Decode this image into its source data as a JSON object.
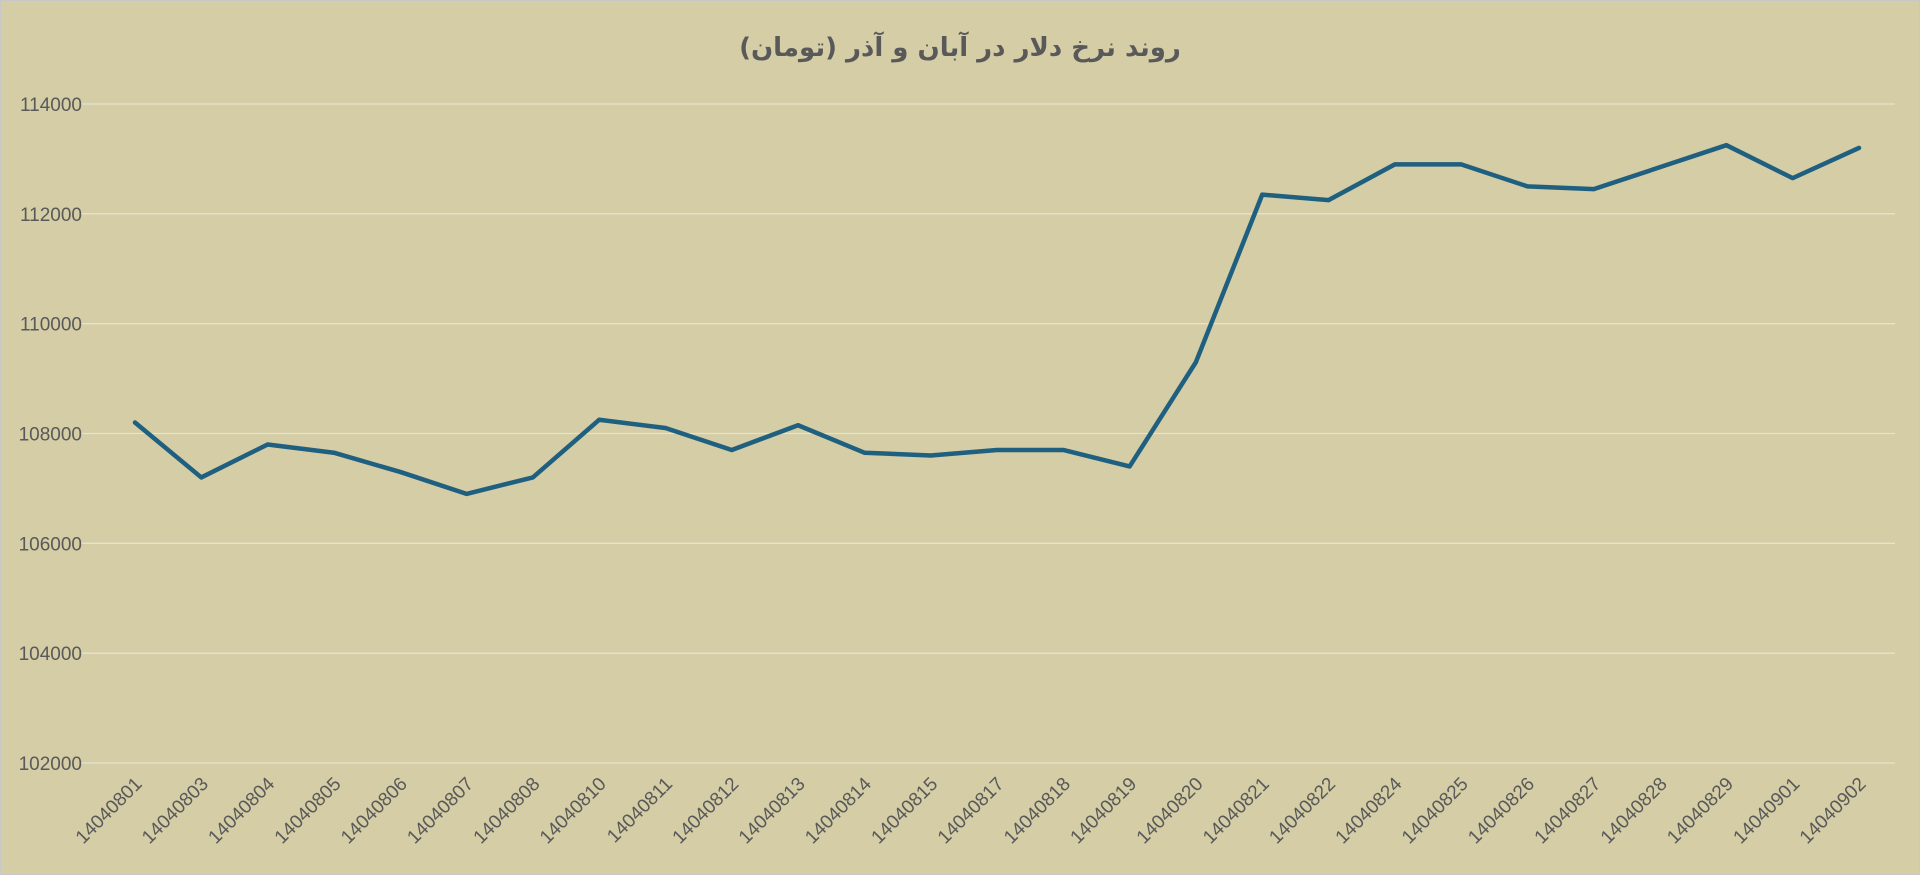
{
  "chart_data": {
    "type": "line",
    "title": "روند نرخ دلار در آبان و آذر (تومان)",
    "xlabel": "",
    "ylabel": "",
    "ylim": [
      102000,
      114000
    ],
    "yticks": [
      102000,
      104000,
      106000,
      108000,
      110000,
      112000,
      114000
    ],
    "grid": true,
    "legend": "none",
    "categories": [
      "14040801",
      "14040803",
      "14040804",
      "14040805",
      "14040806",
      "14040807",
      "14040808",
      "14040810",
      "14040811",
      "14040812",
      "14040813",
      "14040814",
      "14040815",
      "14040817",
      "14040818",
      "14040819",
      "14040820",
      "14040821",
      "14040822",
      "14040824",
      "14040825",
      "14040826",
      "14040827",
      "14040828",
      "14040829",
      "14040901",
      "14040902"
    ],
    "series": [
      {
        "values": [
          108200,
          107200,
          107800,
          107650,
          107300,
          106900,
          107200,
          108250,
          108100,
          107700,
          108150,
          107650,
          107600,
          107700,
          107700,
          107400,
          109300,
          112350,
          112250,
          112900,
          112900,
          112500,
          112450,
          112850,
          113250,
          112650,
          113200
        ]
      }
    ],
    "colors": {
      "background": "#d4cda6",
      "line": "#1f5f7f",
      "grid": "#e8e3cc",
      "text": "#595959"
    }
  }
}
